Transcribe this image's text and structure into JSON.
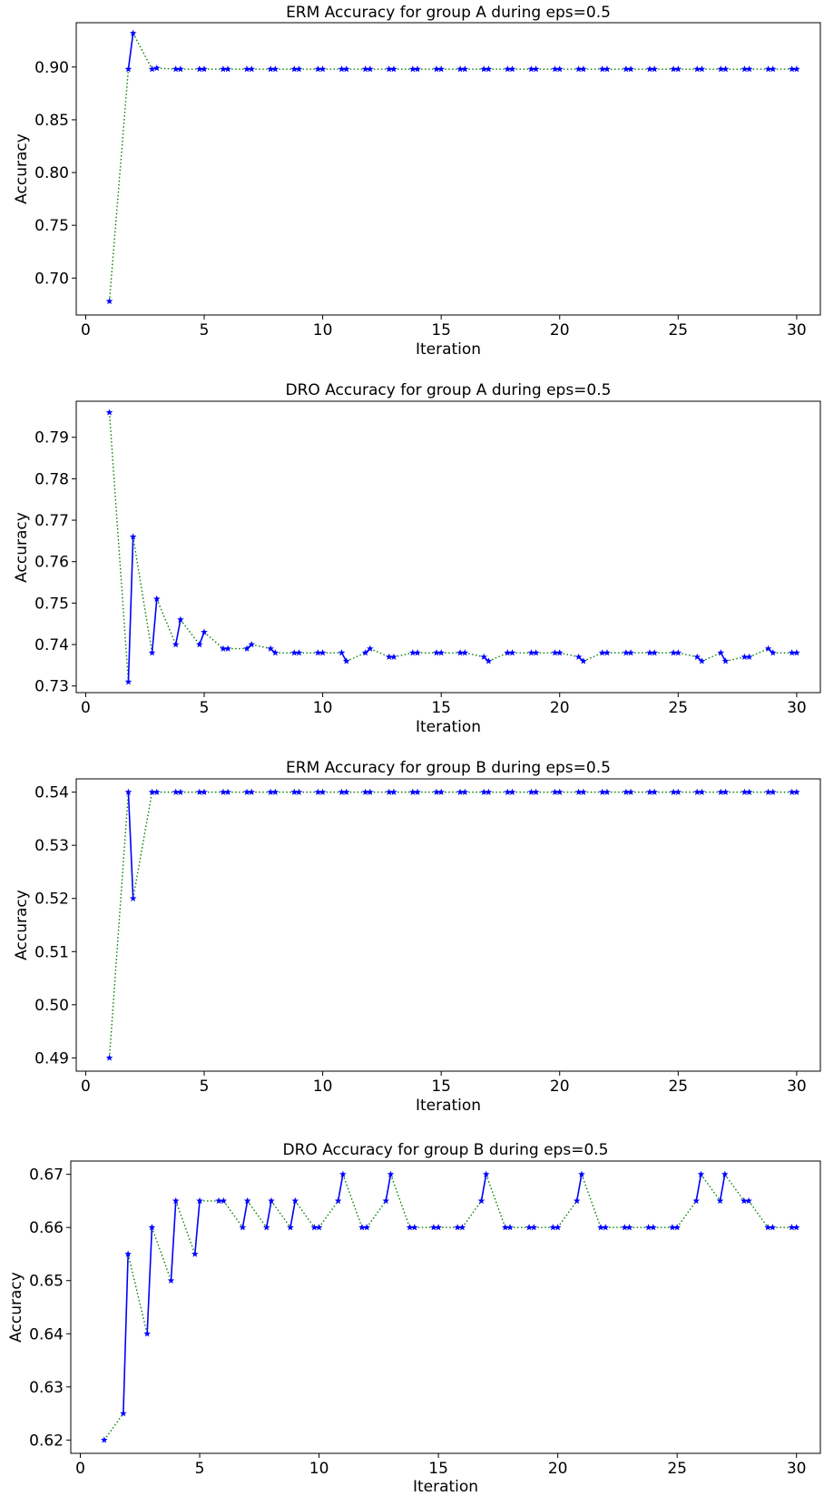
{
  "colors": {
    "solid_line": "#0000ff",
    "dotted_line": "#008000",
    "marker": "#0000ff"
  },
  "chart_data": [
    {
      "type": "line",
      "title": "ERM Accuracy for group A during eps=0.5",
      "xlabel": "Iteration",
      "ylabel": "Accuracy",
      "xlim": [
        -0.4,
        31.0
      ],
      "ylim": [
        0.665,
        0.942
      ],
      "xticks": [
        0,
        5,
        10,
        15,
        20,
        25,
        30
      ],
      "xtick_labels": [
        "0",
        "5",
        "10",
        "15",
        "20",
        "25",
        "30"
      ],
      "yticks": [
        0.7,
        0.75,
        0.8,
        0.85,
        0.9
      ],
      "ytick_labels": [
        "0.70",
        "0.75",
        "0.80",
        "0.85",
        "0.90"
      ],
      "grid": false,
      "series": [
        {
          "style": "solid",
          "marker": "star",
          "x": [
            1,
            2,
            3,
            4,
            5,
            6,
            7,
            8,
            9,
            10,
            11,
            12,
            13,
            14,
            15,
            16,
            17,
            18,
            19,
            20,
            21,
            22,
            23,
            24,
            25,
            26,
            27,
            28,
            29,
            30
          ],
          "y": [
            0.678,
            0.932,
            0.899,
            0.898,
            0.898,
            0.898,
            0.898,
            0.898,
            0.898,
            0.898,
            0.898,
            0.898,
            0.898,
            0.898,
            0.898,
            0.898,
            0.898,
            0.898,
            0.898,
            0.898,
            0.898,
            0.898,
            0.898,
            0.898,
            0.898,
            0.898,
            0.898,
            0.898,
            0.898,
            0.898
          ]
        },
        {
          "style": "dotted",
          "marker": "star",
          "x": [
            1.8,
            2.8,
            3.8,
            4.8,
            5.8,
            6.8,
            7.8,
            8.8,
            9.8,
            10.8,
            11.8,
            12.8,
            13.8,
            14.8,
            15.8,
            16.8,
            17.8,
            18.8,
            19.8,
            20.8,
            21.8,
            22.8,
            23.8,
            24.8,
            25.8,
            26.8,
            27.8,
            28.8,
            29.8
          ],
          "y": [
            0.898,
            0.898,
            0.898,
            0.898,
            0.898,
            0.898,
            0.898,
            0.898,
            0.898,
            0.898,
            0.898,
            0.898,
            0.898,
            0.898,
            0.898,
            0.898,
            0.898,
            0.898,
            0.898,
            0.898,
            0.898,
            0.898,
            0.898,
            0.898,
            0.898,
            0.898,
            0.898,
            0.898,
            0.898
          ]
        }
      ]
    },
    {
      "type": "line",
      "title": "DRO Accuracy for group A during eps=0.5",
      "xlabel": "Iteration",
      "ylabel": "Accuracy",
      "xlim": [
        -0.4,
        31.0
      ],
      "ylim": [
        0.7284,
        0.7987
      ],
      "xticks": [
        0,
        5,
        10,
        15,
        20,
        25,
        30
      ],
      "xtick_labels": [
        "0",
        "5",
        "10",
        "15",
        "20",
        "25",
        "30"
      ],
      "yticks": [
        0.73,
        0.74,
        0.75,
        0.76,
        0.77,
        0.78,
        0.79
      ],
      "ytick_labels": [
        "0.73",
        "0.74",
        "0.75",
        "0.76",
        "0.77",
        "0.78",
        "0.79"
      ],
      "grid": false,
      "series": [
        {
          "style": "solid",
          "marker": "star",
          "x": [
            1,
            2,
            3,
            4,
            5,
            6,
            7,
            8,
            9,
            10,
            11,
            12,
            13,
            14,
            15,
            16,
            17,
            18,
            19,
            20,
            21,
            22,
            23,
            24,
            25,
            26,
            27,
            28,
            29,
            30
          ],
          "y": [
            0.796,
            0.766,
            0.751,
            0.746,
            0.743,
            0.739,
            0.74,
            0.738,
            0.738,
            0.738,
            0.736,
            0.739,
            0.737,
            0.738,
            0.738,
            0.738,
            0.736,
            0.738,
            0.738,
            0.738,
            0.736,
            0.738,
            0.738,
            0.738,
            0.738,
            0.736,
            0.736,
            0.737,
            0.738,
            0.738
          ]
        },
        {
          "style": "dotted",
          "marker": "star",
          "x": [
            1.8,
            2.8,
            3.8,
            4.8,
            5.8,
            6.8,
            7.8,
            8.8,
            9.8,
            10.8,
            11.8,
            12.8,
            13.8,
            14.8,
            15.8,
            16.8,
            17.8,
            18.8,
            19.8,
            20.8,
            21.8,
            22.8,
            23.8,
            24.8,
            25.8,
            26.8,
            27.8,
            28.8,
            29.8
          ],
          "y": [
            0.731,
            0.738,
            0.74,
            0.74,
            0.739,
            0.739,
            0.739,
            0.738,
            0.738,
            0.738,
            0.738,
            0.737,
            0.738,
            0.738,
            0.738,
            0.737,
            0.738,
            0.738,
            0.738,
            0.737,
            0.738,
            0.738,
            0.738,
            0.738,
            0.737,
            0.738,
            0.737,
            0.739,
            0.738
          ]
        }
      ]
    },
    {
      "type": "line",
      "title": "ERM Accuracy for group B during eps=0.5",
      "xlabel": "Iteration",
      "ylabel": "Accuracy",
      "xlim": [
        -0.4,
        31.0
      ],
      "ylim": [
        0.4875,
        0.5425
      ],
      "xticks": [
        0,
        5,
        10,
        15,
        20,
        25,
        30
      ],
      "xtick_labels": [
        "0",
        "5",
        "10",
        "15",
        "20",
        "25",
        "30"
      ],
      "yticks": [
        0.49,
        0.5,
        0.51,
        0.52,
        0.53,
        0.54
      ],
      "ytick_labels": [
        "0.49",
        "0.50",
        "0.51",
        "0.52",
        "0.53",
        "0.54"
      ],
      "grid": false,
      "series": [
        {
          "style": "solid",
          "marker": "star",
          "x": [
            1,
            2,
            3,
            4,
            5,
            6,
            7,
            8,
            9,
            10,
            11,
            12,
            13,
            14,
            15,
            16,
            17,
            18,
            19,
            20,
            21,
            22,
            23,
            24,
            25,
            26,
            27,
            28,
            29,
            30
          ],
          "y": [
            0.49,
            0.52,
            0.54,
            0.54,
            0.54,
            0.54,
            0.54,
            0.54,
            0.54,
            0.54,
            0.54,
            0.54,
            0.54,
            0.54,
            0.54,
            0.54,
            0.54,
            0.54,
            0.54,
            0.54,
            0.54,
            0.54,
            0.54,
            0.54,
            0.54,
            0.54,
            0.54,
            0.54,
            0.54,
            0.54
          ]
        },
        {
          "style": "dotted",
          "marker": "star",
          "x": [
            1.8,
            2.8,
            3.8,
            4.8,
            5.8,
            6.8,
            7.8,
            8.8,
            9.8,
            10.8,
            11.8,
            12.8,
            13.8,
            14.8,
            15.8,
            16.8,
            17.8,
            18.8,
            19.8,
            20.8,
            21.8,
            22.8,
            23.8,
            24.8,
            25.8,
            26.8,
            27.8,
            28.8,
            29.8
          ],
          "y": [
            0.54,
            0.54,
            0.54,
            0.54,
            0.54,
            0.54,
            0.54,
            0.54,
            0.54,
            0.54,
            0.54,
            0.54,
            0.54,
            0.54,
            0.54,
            0.54,
            0.54,
            0.54,
            0.54,
            0.54,
            0.54,
            0.54,
            0.54,
            0.54,
            0.54,
            0.54,
            0.54,
            0.54,
            0.54
          ]
        }
      ]
    },
    {
      "type": "line",
      "title": "DRO Accuracy for group B during eps=0.5",
      "xlabel": "Iteration",
      "ylabel": "Accuracy",
      "xlim": [
        -0.4,
        31.0
      ],
      "ylim": [
        0.6175,
        0.6725
      ],
      "xticks": [
        0,
        5,
        10,
        15,
        20,
        25,
        30
      ],
      "xtick_labels": [
        "0",
        "5",
        "10",
        "15",
        "20",
        "25",
        "30"
      ],
      "yticks": [
        0.62,
        0.63,
        0.64,
        0.65,
        0.66,
        0.67
      ],
      "ytick_labels": [
        "0.62",
        "0.63",
        "0.64",
        "0.65",
        "0.66",
        "0.67"
      ],
      "grid": false,
      "series": [
        {
          "style": "solid",
          "marker": "star",
          "x": [
            1,
            2,
            3,
            4,
            5,
            6,
            7,
            8,
            9,
            10,
            11,
            12,
            13,
            14,
            15,
            16,
            17,
            18,
            19,
            20,
            21,
            22,
            23,
            24,
            25,
            26,
            27,
            28,
            29,
            30
          ],
          "y": [
            0.62,
            0.655,
            0.66,
            0.665,
            0.665,
            0.665,
            0.665,
            0.665,
            0.665,
            0.66,
            0.67,
            0.66,
            0.67,
            0.66,
            0.66,
            0.66,
            0.67,
            0.66,
            0.66,
            0.66,
            0.67,
            0.66,
            0.66,
            0.66,
            0.66,
            0.67,
            0.67,
            0.665,
            0.66,
            0.66
          ]
        },
        {
          "style": "dotted",
          "marker": "star",
          "x": [
            1.8,
            2.8,
            3.8,
            4.8,
            5.8,
            6.8,
            7.8,
            8.8,
            9.8,
            10.8,
            11.8,
            12.8,
            13.8,
            14.8,
            15.8,
            16.8,
            17.8,
            18.8,
            19.8,
            20.8,
            21.8,
            22.8,
            23.8,
            24.8,
            25.8,
            26.8,
            27.8,
            28.8,
            29.8
          ],
          "y": [
            0.625,
            0.64,
            0.65,
            0.655,
            0.665,
            0.66,
            0.66,
            0.66,
            0.66,
            0.665,
            0.66,
            0.665,
            0.66,
            0.66,
            0.66,
            0.665,
            0.66,
            0.66,
            0.66,
            0.665,
            0.66,
            0.66,
            0.66,
            0.66,
            0.665,
            0.665,
            0.665,
            0.66,
            0.66
          ]
        }
      ]
    }
  ]
}
